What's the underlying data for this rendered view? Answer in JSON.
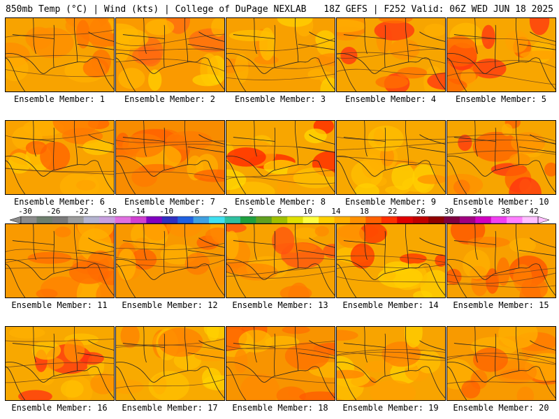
{
  "header": {
    "left": "850mb Temp (°C) | Wind (kts) | College of DuPage NEXLAB",
    "right": "18Z GEFS | F252 Valid: 06Z WED JUN 18 2025"
  },
  "colorbar": {
    "labels": [
      "-30",
      "-26",
      "-22",
      "-18",
      "-14",
      "-10",
      "-6",
      "-2",
      "2",
      "6",
      "10",
      "14",
      "18",
      "22",
      "26",
      "30",
      "34",
      "38",
      "42"
    ],
    "colors": [
      "#8c8c8c",
      "#6e7f6e",
      "#7a7a7a",
      "#9c9c9c",
      "#b4b4d0",
      "#c8a0e0",
      "#e070e0",
      "#d040d0",
      "#8000c0",
      "#3030c0",
      "#2060e0",
      "#40a0e0",
      "#40e0f0",
      "#30c0a0",
      "#20a040",
      "#60a020",
      "#a0c000",
      "#e0e000",
      "#ffff40",
      "#ffd000",
      "#ffb000",
      "#ff9000",
      "#ff6000",
      "#ff3000",
      "#e00000",
      "#c00000",
      "#900000",
      "#800040",
      "#a00080",
      "#d000c0",
      "#f040f0",
      "#ff80ff",
      "#ffc0ff"
    ]
  },
  "panels": [
    {
      "label": "Ensemble Member: 1",
      "bg": "#f8a300",
      "blobs": [
        "#ff8c00",
        "#ff7000",
        "#ffb000",
        "#ff8000"
      ]
    },
    {
      "label": "Ensemble Member: 2",
      "bg": "#fa9a00",
      "blobs": [
        "#ff6a10",
        "#ffb400",
        "#ffd000",
        "#ffb800"
      ]
    },
    {
      "label": "Ensemble Member: 3",
      "bg": "#f8a000",
      "blobs": [
        "#ffb000",
        "#ff8a00",
        "#ffd000",
        "#ffc000"
      ]
    },
    {
      "label": "Ensemble Member: 4",
      "bg": "#f7a500",
      "blobs": [
        "#ff3010",
        "#ff7000",
        "#ffb000",
        "#ff9000"
      ]
    },
    {
      "label": "Ensemble Member: 5",
      "bg": "#f8a600",
      "blobs": [
        "#ff3010",
        "#ff6000",
        "#ffb800",
        "#ffa000"
      ]
    },
    {
      "label": "Ensemble Member: 6",
      "bg": "#f9a200",
      "blobs": [
        "#ff7a00",
        "#ffb000",
        "#ff6000",
        "#ffc800"
      ]
    },
    {
      "label": "Ensemble Member: 7",
      "bg": "#f88c00",
      "blobs": [
        "#ff6000",
        "#ff7a00",
        "#ffb000",
        "#ff7000"
      ]
    },
    {
      "label": "Ensemble Member: 8",
      "bg": "#f8a600",
      "blobs": [
        "#ff2000",
        "#ffc000",
        "#ffd800",
        "#ffa000"
      ]
    },
    {
      "label": "Ensemble Member: 9",
      "bg": "#f8a800",
      "blobs": [
        "#ffc000",
        "#ffb000",
        "#ffd000",
        "#ff9000"
      ]
    },
    {
      "label": "Ensemble Member: 10",
      "bg": "#f7a500",
      "blobs": [
        "#ff3010",
        "#ff6000",
        "#ffb000",
        "#ff9000"
      ]
    },
    {
      "label": "Ensemble Member: 11",
      "bg": "#f99a00",
      "blobs": [
        "#ff6a00",
        "#ff8000",
        "#ffb000",
        "#ff7000"
      ]
    },
    {
      "label": "Ensemble Member: 12",
      "bg": "#f89800",
      "blobs": [
        "#ff6000",
        "#ffb000",
        "#ff7a00",
        "#ff9000"
      ]
    },
    {
      "label": "Ensemble Member: 13",
      "bg": "#f8a200",
      "blobs": [
        "#ff5010",
        "#ff7a00",
        "#ffb000",
        "#ff8a00"
      ]
    },
    {
      "label": "Ensemble Member: 14",
      "bg": "#f8a800",
      "blobs": [
        "#ffd000",
        "#ff3000",
        "#ffc000",
        "#ff9000"
      ]
    },
    {
      "label": "Ensemble Member: 15",
      "bg": "#f8a000",
      "blobs": [
        "#ff5000",
        "#ff7000",
        "#ffb000",
        "#ff8000"
      ]
    },
    {
      "label": "Ensemble Member: 16",
      "bg": "#f8a800",
      "blobs": [
        "#ff3010",
        "#ffc000",
        "#ffb000",
        "#ff9000"
      ]
    },
    {
      "label": "Ensemble Member: 17",
      "bg": "#f8aa00",
      "blobs": [
        "#ff8000",
        "#ffd000",
        "#ffc000",
        "#ffa000"
      ]
    },
    {
      "label": "Ensemble Member: 18",
      "bg": "#f89400",
      "blobs": [
        "#ff5a00",
        "#ffb800",
        "#ff7000",
        "#ff8a00"
      ]
    },
    {
      "label": "Ensemble Member: 19",
      "bg": "#f8a400",
      "blobs": [
        "#ffc000",
        "#ff8000",
        "#ffd000",
        "#ffa000"
      ]
    },
    {
      "label": "Ensemble Member: 20",
      "bg": "#f89a00",
      "blobs": [
        "#ff6000",
        "#ffb000",
        "#ff7a00",
        "#ff8a00"
      ]
    }
  ]
}
